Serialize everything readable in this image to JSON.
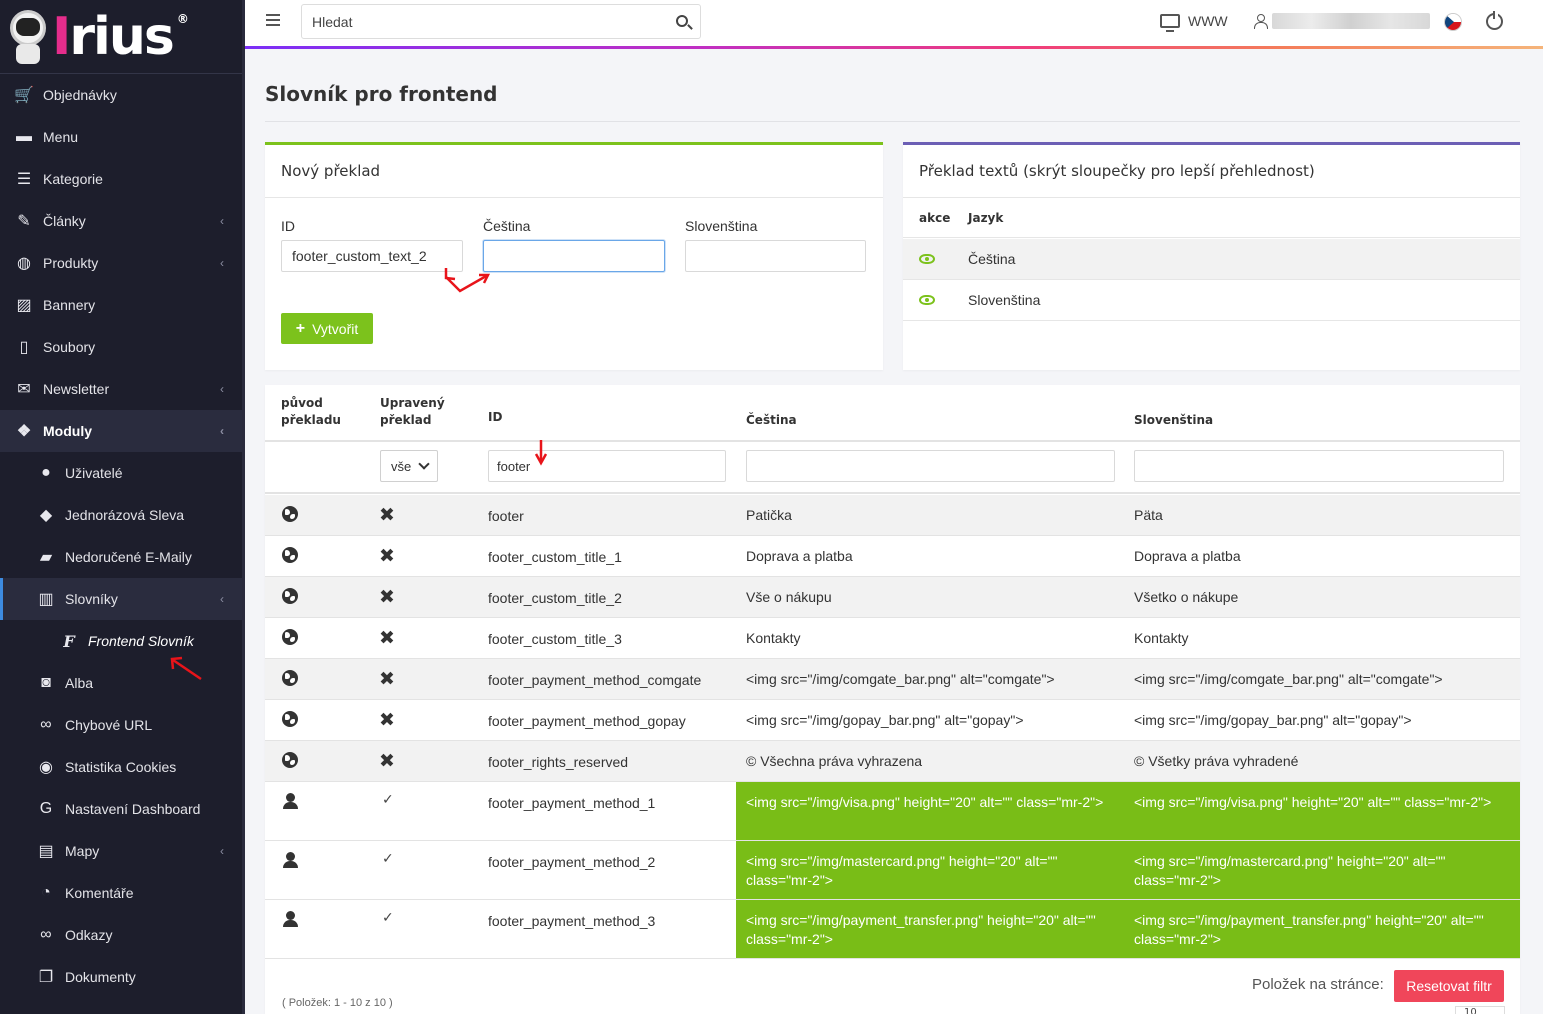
{
  "brand": {
    "name_i": "I",
    "name_rest": "rius",
    "reg": "®"
  },
  "topbar": {
    "search_placeholder": "Hledat",
    "www_label": "WWW"
  },
  "sidebar": {
    "items": [
      {
        "label": "Objednávky",
        "icon": "cart-icon",
        "glyph": "🛒"
      },
      {
        "label": "Menu",
        "icon": "folder-icon",
        "glyph": "▬"
      },
      {
        "label": "Kategorie",
        "icon": "list-icon",
        "glyph": "☰"
      },
      {
        "label": "Články",
        "icon": "pencil-icon",
        "glyph": "✎",
        "chevron": "‹"
      },
      {
        "label": "Produkty",
        "icon": "basketball-icon",
        "glyph": "◍",
        "chevron": "‹"
      },
      {
        "label": "Bannery",
        "icon": "image-icon",
        "glyph": "▨"
      },
      {
        "label": "Soubory",
        "icon": "file-icon",
        "glyph": "▯"
      },
      {
        "label": "Newsletter",
        "icon": "mail-icon",
        "glyph": "✉",
        "chevron": "‹"
      },
      {
        "label": "Moduly",
        "icon": "cubes-icon",
        "glyph": "❖",
        "chevron": "‹"
      },
      {
        "label": "Uživatelé",
        "icon": "user-icon",
        "glyph": "●"
      },
      {
        "label": "Jednorázová Sleva",
        "icon": "tags-icon",
        "glyph": "◆"
      },
      {
        "label": "Nedoručené E-Maily",
        "icon": "mail-bulk-icon",
        "glyph": "▰"
      },
      {
        "label": "Slovníky",
        "icon": "books-icon",
        "glyph": "▥",
        "chevron": "‹"
      },
      {
        "label": "Frontend Slovník",
        "icon": "font-f-icon",
        "glyph": "F"
      },
      {
        "label": "Alba",
        "icon": "camera-icon",
        "glyph": "◙"
      },
      {
        "label": "Chybové URL",
        "icon": "link-icon",
        "glyph": "∞"
      },
      {
        "label": "Statistika Cookies",
        "icon": "cookie-icon",
        "glyph": "◉"
      },
      {
        "label": "Nastavení Dashboard",
        "icon": "google-g-icon",
        "glyph": "G"
      },
      {
        "label": "Mapy",
        "icon": "map-icon",
        "glyph": "▤",
        "chevron": "‹"
      },
      {
        "label": "Komentáře",
        "icon": "comments-icon",
        "glyph": "◔"
      },
      {
        "label": "Odkazy",
        "icon": "link-icon",
        "glyph": "∞"
      },
      {
        "label": "Dokumenty",
        "icon": "copy-icon",
        "glyph": "❐"
      }
    ]
  },
  "page": {
    "title": "Slovník pro frontend"
  },
  "new_translation": {
    "title": "Nový překlad",
    "id_label": "ID",
    "id_value": "footer_custom_text_2",
    "cs_label": "Čeština",
    "cs_value": "",
    "sk_label": "Slovenština",
    "sk_value": "",
    "create_label": "Vytvořit",
    "create_icon": "+"
  },
  "text_translation": {
    "title": "Překlad textů (skrýt sloupečky pro lepší přehlednost)",
    "col_action": "akce",
    "col_lang": "Jazyk",
    "langs": [
      "Čeština",
      "Slovenština"
    ]
  },
  "table": {
    "headers": {
      "origin_1": "původ",
      "origin_2": "překladu",
      "edited_1": "Upravený",
      "edited_2": "překlad",
      "id": "ID",
      "cs": "Čeština",
      "sk": "Slovenština"
    },
    "filters": {
      "edited_select": "vše",
      "id": "footer",
      "cs": "",
      "sk": ""
    },
    "rows": [
      {
        "origin": "globe-icon",
        "edited": false,
        "id": "footer",
        "cs": "Patička",
        "sk": "Päta"
      },
      {
        "origin": "globe-icon",
        "edited": false,
        "id": "footer_custom_title_1",
        "cs": "Doprava a platba",
        "sk": "Doprava a platba"
      },
      {
        "origin": "globe-icon",
        "edited": false,
        "id": "footer_custom_title_2",
        "cs": "Vše o nákupu",
        "sk": "Všetko o nákupe"
      },
      {
        "origin": "globe-icon",
        "edited": false,
        "id": "footer_custom_title_3",
        "cs": "Kontakty",
        "sk": "Kontakty"
      },
      {
        "origin": "globe-icon",
        "edited": false,
        "id": "footer_payment_method_comgate",
        "cs": "<img src=\"/img/comgate_bar.png\" alt=\"comgate\">",
        "sk": "<img src=\"/img/comgate_bar.png\" alt=\"comgate\">"
      },
      {
        "origin": "globe-icon",
        "edited": false,
        "id": "footer_payment_method_gopay",
        "cs": "<img src=\"/img/gopay_bar.png\" alt=\"gopay\">",
        "sk": "<img src=\"/img/gopay_bar.png\" alt=\"gopay\">"
      },
      {
        "origin": "globe-icon",
        "edited": false,
        "id": "footer_rights_reserved",
        "cs": "© Všechna práva vyhrazena",
        "sk": "© Všetky práva vyhradené"
      },
      {
        "origin": "user-edit-icon",
        "edited": true,
        "id": "footer_payment_method_1",
        "cs": "<img src=\"/img/visa.png\" height=\"20\" alt=\"\" class=\"mr-2\">",
        "sk": "<img src=\"/img/visa.png\" height=\"20\" alt=\"\" class=\"mr-2\">"
      },
      {
        "origin": "user-edit-icon",
        "edited": true,
        "id": "footer_payment_method_2",
        "cs": "<img src=\"/img/mastercard.png\" height=\"20\" alt=\"\" class=\"mr-2\">",
        "sk": "<img src=\"/img/mastercard.png\" height=\"20\" alt=\"\" class=\"mr-2\">"
      },
      {
        "origin": "user-edit-icon",
        "edited": true,
        "id": "footer_payment_method_3",
        "cs": "<img src=\"/img/payment_transfer.png\" height=\"20\" alt=\"\" class=\"mr-2\">",
        "sk": "<img src=\"/img/payment_transfer.png\" height=\"20\" alt=\"\" class=\"mr-2\">"
      }
    ],
    "edited_mark": "✓",
    "not_edited_mark": "✖"
  },
  "footer": {
    "count_text": "( Položek: 1 - 10 z 10 )",
    "per_page_label": "Položek na stránce:",
    "reset_label": "Resetovat filtr",
    "per_page_value": "10"
  },
  "colors": {
    "accent_green": "#7cc21c",
    "reset_red": "#f0465a",
    "sidebar_bg": "#1d1e2c"
  }
}
